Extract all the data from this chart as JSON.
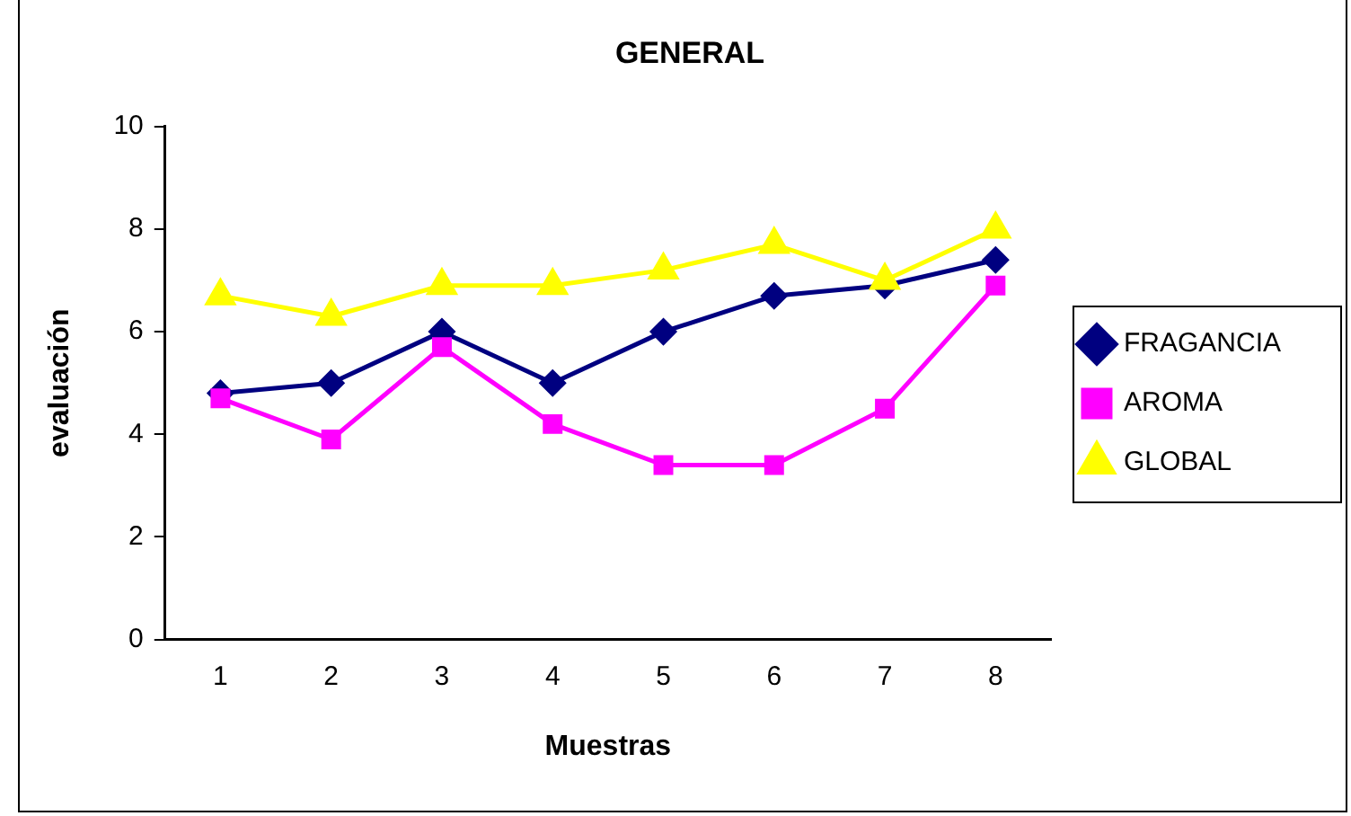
{
  "chart_data": {
    "type": "line",
    "title": "GENERAL",
    "xlabel": "Muestras",
    "ylabel": "evaluación",
    "categories": [
      "1",
      "2",
      "3",
      "4",
      "5",
      "6",
      "7",
      "8"
    ],
    "series": [
      {
        "name": "FRAGANCIA",
        "color": "#000080",
        "marker": "diamond",
        "values": [
          4.8,
          5.0,
          6.0,
          5.0,
          6.0,
          6.7,
          6.9,
          7.4
        ]
      },
      {
        "name": "AROMA",
        "color": "#ff00ff",
        "marker": "square",
        "values": [
          4.7,
          3.9,
          5.7,
          4.2,
          3.4,
          3.4,
          4.5,
          6.9
        ]
      },
      {
        "name": "GLOBAL",
        "color": "#ffff00",
        "marker": "triangle",
        "values": [
          6.7,
          6.3,
          6.9,
          6.9,
          7.2,
          7.7,
          7.0,
          8.0
        ]
      }
    ],
    "ylim": [
      0,
      10
    ],
    "yticks": [
      0,
      2,
      4,
      6,
      8,
      10
    ],
    "grid": false,
    "legend": "right",
    "line_style": "solid"
  }
}
